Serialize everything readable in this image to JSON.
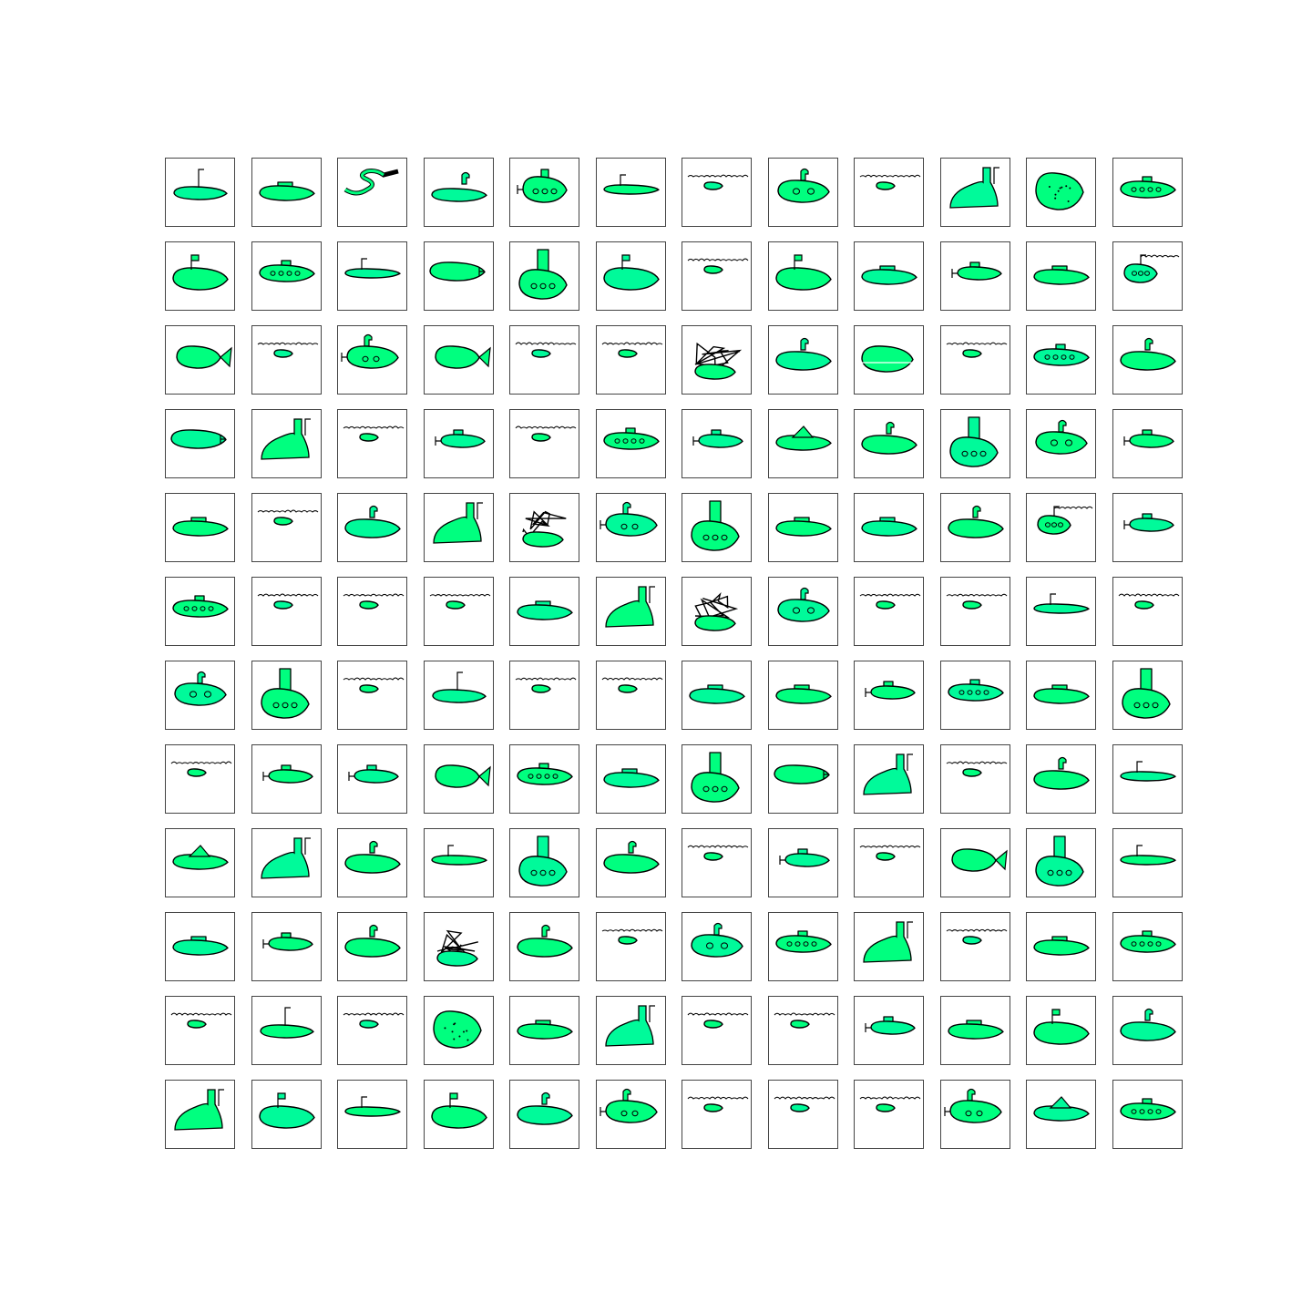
{
  "grid": {
    "rows": 12,
    "columns": 12,
    "subject": "submarine",
    "colors": {
      "fill_primary": "#00ff7f",
      "fill_secondary": "#00fa9a",
      "stroke": "#000000",
      "frame": "#444444",
      "background": "#ffffff"
    },
    "cells": [
      [
        "tower-pole",
        "tower-box",
        "serpent",
        "periscope-low",
        "portholes-propeller",
        "flat-periscope",
        "wavy-small",
        "portholes-two",
        "wavy-small",
        "long-tower",
        "puffer-dots",
        "portholes-row"
      ],
      [
        "flag-top",
        "portholes-row",
        "flat-periscope",
        "blimp",
        "tall-tower",
        "flag-top",
        "wavy-small",
        "flag-top",
        "tower-box",
        "propeller-tail",
        "tower-box",
        "wavy-portholes"
      ],
      [
        "fish-tail",
        "wavy-small",
        "periscope-tail",
        "fish-tail",
        "wavy-small",
        "wavy-small",
        "scribble",
        "periscope-curl",
        "dome-waterline",
        "wavy-small",
        "portholes-row",
        "periscope-curl"
      ],
      [
        "blimp",
        "long-tower",
        "wavy-small",
        "propeller-tail",
        "wavy-small",
        "portholes-row",
        "propeller-tail",
        "shark-fin",
        "periscope-curl",
        "tall-tower",
        "portholes-two",
        "propeller-tail"
      ],
      [
        "tower-box",
        "wavy-small",
        "periscope-curl",
        "long-tower",
        "scribble",
        "periscope-tail",
        "tall-tower",
        "tower-box",
        "tower-box",
        "periscope-curl",
        "wavy-portholes",
        "propeller-tail"
      ],
      [
        "portholes-row",
        "wavy-small",
        "wavy-small",
        "wavy-small",
        "tower-box",
        "long-tower",
        "scribble",
        "portholes-two",
        "wavy-small",
        "wavy-small",
        "flat-periscope",
        "wavy-small"
      ],
      [
        "portholes-two",
        "tall-tower",
        "wavy-small",
        "tower-pole",
        "wavy-small",
        "wavy-small",
        "tower-box",
        "tower-box",
        "propeller-tail",
        "portholes-row",
        "tower-box",
        "tall-tower"
      ],
      [
        "wavy-small",
        "propeller-tail",
        "propeller-tail",
        "fish-tail",
        "portholes-row",
        "tower-box",
        "tall-tower",
        "blimp",
        "long-tower",
        "wavy-small",
        "periscope-curl",
        "flat-periscope"
      ],
      [
        "shark-fin",
        "long-tower",
        "periscope-curl",
        "flat-periscope",
        "tall-tower",
        "periscope-curl",
        "wavy-small",
        "propeller-tail",
        "wavy-small",
        "fish-tail",
        "tall-tower",
        "flat-periscope"
      ],
      [
        "tower-box",
        "propeller-tail",
        "periscope-curl",
        "scribble",
        "periscope-curl",
        "wavy-small",
        "portholes-two",
        "portholes-row",
        "long-tower",
        "wavy-small",
        "tower-box",
        "portholes-row"
      ],
      [
        "wavy-small",
        "tower-pole",
        "wavy-small",
        "puffer-dots",
        "tower-box",
        "long-tower",
        "wavy-small",
        "wavy-small",
        "propeller-tail",
        "tower-box",
        "flag-top",
        "periscope-curl"
      ],
      [
        "long-tower",
        "flag-top",
        "flat-periscope",
        "flag-top",
        "periscope-curl",
        "periscope-tail",
        "wavy-small",
        "wavy-small",
        "wavy-small",
        "periscope-tail",
        "shark-fin",
        "portholes-row"
      ]
    ]
  }
}
